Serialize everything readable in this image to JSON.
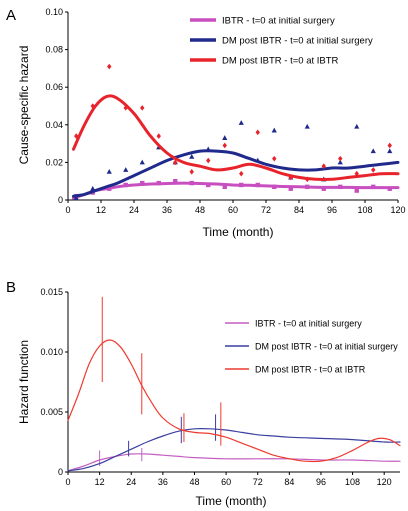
{
  "chart_data": [
    {
      "type": "line",
      "panel_label": "A",
      "xlabel": "Time (month)",
      "ylabel": "Cause-specific hazard",
      "xlim": [
        0,
        120
      ],
      "ylim": [
        0,
        0.1
      ],
      "xticks": [
        "0",
        "12",
        "24",
        "36",
        "48",
        "60",
        "72",
        "84",
        "96",
        "108",
        "120"
      ],
      "yticks": [
        "0",
        "0.02",
        "0.04",
        "0.06",
        "0.08",
        "0.10"
      ],
      "grid": false,
      "legend_position": "top-right",
      "series": [
        {
          "name": "IBTR - t=0 at initial surgery",
          "color": "#c74fc0",
          "marker": "square",
          "x": [
            2,
            6,
            10,
            14,
            18,
            24,
            30,
            36,
            42,
            48,
            54,
            60,
            66,
            72,
            78,
            84,
            90,
            96,
            102,
            108,
            114,
            120
          ],
          "y": [
            0.001,
            0.003,
            0.005,
            0.006,
            0.007,
            0.008,
            0.0085,
            0.0088,
            0.009,
            0.0088,
            0.0085,
            0.008,
            0.0078,
            0.0075,
            0.0072,
            0.007,
            0.0068,
            0.0067,
            0.0067,
            0.0066,
            0.0066,
            0.0066
          ],
          "points_x": [
            3,
            9,
            15,
            21,
            27,
            33,
            39,
            45,
            51,
            57,
            63,
            69,
            75,
            81,
            87,
            93,
            99,
            105,
            111,
            117
          ],
          "points_y": [
            0.002,
            0.004,
            0.006,
            0.008,
            0.009,
            0.009,
            0.01,
            0.009,
            0.008,
            0.007,
            0.008,
            0.008,
            0.007,
            0.006,
            0.007,
            0.006,
            0.007,
            0.005,
            0.007,
            0.006
          ]
        },
        {
          "name": "DM post IBTR - t=0 at initial surgery",
          "color": "#1f2a8c",
          "marker": "triangle",
          "x": [
            2,
            6,
            10,
            14,
            18,
            24,
            30,
            36,
            42,
            48,
            54,
            60,
            66,
            72,
            78,
            84,
            90,
            96,
            102,
            108,
            114,
            120
          ],
          "y": [
            0.002,
            0.003,
            0.005,
            0.007,
            0.009,
            0.013,
            0.017,
            0.021,
            0.024,
            0.026,
            0.026,
            0.025,
            0.022,
            0.019,
            0.017,
            0.016,
            0.016,
            0.017,
            0.017,
            0.018,
            0.019,
            0.02
          ],
          "points_x": [
            3,
            9,
            15,
            21,
            27,
            33,
            39,
            45,
            51,
            57,
            63,
            69,
            75,
            81,
            87,
            93,
            99,
            105,
            111,
            117
          ],
          "points_y": [
            0.001,
            0.006,
            0.015,
            0.016,
            0.02,
            0.028,
            0.02,
            0.023,
            0.027,
            0.033,
            0.041,
            0.021,
            0.037,
            0.012,
            0.039,
            0.011,
            0.02,
            0.039,
            0.026,
            0.026
          ]
        },
        {
          "name": "DM post IBTR - t=0 at IBTR",
          "color": "#e8232b",
          "marker": "diamond",
          "x": [
            2,
            6,
            10,
            14,
            18,
            24,
            30,
            36,
            42,
            48,
            54,
            60,
            66,
            72,
            78,
            84,
            90,
            96,
            102,
            108,
            114,
            120
          ],
          "y": [
            0.027,
            0.04,
            0.05,
            0.055,
            0.054,
            0.046,
            0.034,
            0.025,
            0.02,
            0.018,
            0.016,
            0.017,
            0.019,
            0.017,
            0.014,
            0.012,
            0.011,
            0.011,
            0.012,
            0.013,
            0.014,
            0.014
          ],
          "points_x": [
            3,
            9,
            15,
            21,
            27,
            33,
            39,
            45,
            51,
            57,
            63,
            69,
            75,
            81,
            87,
            93,
            99,
            105,
            111,
            117
          ],
          "points_y": [
            0.034,
            0.05,
            0.071,
            0.049,
            0.049,
            0.034,
            0.02,
            0.015,
            0.021,
            0.029,
            0.014,
            0.036,
            0.022,
            0.012,
            0.011,
            0.018,
            0.022,
            0.014,
            0.016,
            0.029
          ]
        }
      ]
    },
    {
      "type": "line",
      "panel_label": "B",
      "xlabel": "Time (month)",
      "ylabel": "Hazard function",
      "xlim": [
        0,
        126
      ],
      "ylim": [
        0,
        0.015
      ],
      "xticks": [
        "0",
        "12",
        "24",
        "36",
        "48",
        "60",
        "72",
        "84",
        "96",
        "108",
        "120"
      ],
      "yticks": [
        "0",
        "0.005",
        "0.010",
        "0.015"
      ],
      "grid": false,
      "legend_position": "right",
      "series": [
        {
          "name": "IBTR - t=0 at initial surgery",
          "color": "#c45fc0",
          "x": [
            0,
            6,
            12,
            18,
            24,
            30,
            36,
            42,
            48,
            60,
            72,
            84,
            96,
            108,
            120,
            126
          ],
          "y": [
            0.0001,
            0.0005,
            0.001,
            0.0013,
            0.0015,
            0.0015,
            0.0014,
            0.0013,
            0.0012,
            0.0011,
            0.0011,
            0.0011,
            0.001,
            0.001,
            0.0009,
            0.0009
          ],
          "error_bars": [
            {
              "x": 12,
              "low": 0.0005,
              "high": 0.0018
            },
            {
              "x": 28,
              "low": 0.0009,
              "high": 0.002
            }
          ]
        },
        {
          "name": "DM post IBTR - t=0 at initial surgery",
          "color": "#3a3fa0",
          "x": [
            0,
            6,
            12,
            18,
            24,
            30,
            36,
            42,
            48,
            54,
            60,
            66,
            72,
            78,
            84,
            96,
            108,
            120,
            126
          ],
          "y": [
            0.0001,
            0.0003,
            0.0007,
            0.0013,
            0.0019,
            0.0025,
            0.003,
            0.0034,
            0.0036,
            0.0036,
            0.0035,
            0.0033,
            0.0031,
            0.003,
            0.0029,
            0.0028,
            0.0027,
            0.0025,
            0.0025
          ],
          "error_bars": [
            {
              "x": 23,
              "low": 0.0013,
              "high": 0.0026
            },
            {
              "x": 43,
              "low": 0.0024,
              "high": 0.0046
            },
            {
              "x": 56,
              "low": 0.0026,
              "high": 0.0048
            }
          ]
        },
        {
          "name": "DM post IBTR - t=0 at IBTR",
          "color": "#ee3a2e",
          "x": [
            0,
            4,
            8,
            12,
            16,
            20,
            24,
            28,
            32,
            36,
            42,
            48,
            54,
            60,
            66,
            72,
            78,
            84,
            90,
            96,
            102,
            108,
            114,
            118,
            122,
            126
          ],
          "y": [
            0.0043,
            0.0065,
            0.009,
            0.0105,
            0.011,
            0.0104,
            0.009,
            0.0072,
            0.0057,
            0.0045,
            0.0036,
            0.0033,
            0.0032,
            0.0029,
            0.0024,
            0.0019,
            0.0014,
            0.0011,
            0.0009,
            0.0009,
            0.0012,
            0.0018,
            0.0025,
            0.0028,
            0.0027,
            0.0022
          ],
          "error_bars": [
            {
              "x": 13,
              "low": 0.0075,
              "high": 0.0146
            },
            {
              "x": 28,
              "low": 0.0048,
              "high": 0.0099
            },
            {
              "x": 44,
              "low": 0.0025,
              "high": 0.0049
            },
            {
              "x": 58,
              "low": 0.0022,
              "high": 0.0058
            }
          ]
        }
      ]
    }
  ]
}
